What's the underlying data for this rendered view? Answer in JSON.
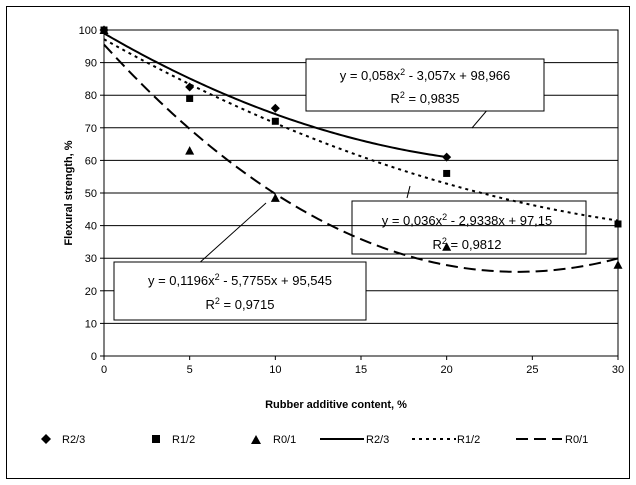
{
  "chart_data": {
    "type": "scatter",
    "xlabel": "Rubber additive content, %",
    "ylabel": "Flexural strength, %",
    "xlim": [
      0,
      30
    ],
    "ylim": [
      0,
      100
    ],
    "x_ticks": [
      "0",
      "5",
      "10",
      "15",
      "20",
      "25",
      "30"
    ],
    "y_ticks": [
      "0",
      "10",
      "20",
      "30",
      "40",
      "50",
      "60",
      "70",
      "80",
      "90",
      "100"
    ],
    "grid": "horizontal",
    "legend_position": "bottom",
    "series": [
      {
        "name": "R2/3",
        "marker": "diamond",
        "x": [
          0,
          5,
          10,
          20
        ],
        "y": [
          100,
          82.5,
          76,
          61
        ]
      },
      {
        "name": "R1/2",
        "marker": "square",
        "x": [
          0,
          5,
          10,
          20,
          30
        ],
        "y": [
          100,
          79,
          72,
          56,
          40.5
        ]
      },
      {
        "name": "R0/1",
        "marker": "triangle",
        "x": [
          0,
          5,
          10,
          20,
          30
        ],
        "y": [
          100,
          63,
          48.5,
          33.5,
          28
        ]
      }
    ],
    "trendlines": [
      {
        "name": "R2/3",
        "style": "solid",
        "a": 0.058,
        "b": -3.057,
        "c": 98.966,
        "x_range": [
          0,
          20
        ],
        "equation": "y = 0,058x",
        "equation_tail": " - 3,057x + 98,966",
        "r2_label": "R",
        "r2_value": " = 0,9835"
      },
      {
        "name": "R1/2",
        "style": "dotted",
        "a": 0.036,
        "b": -2.9338,
        "c": 97.15,
        "x_range": [
          0,
          30
        ],
        "equation": "y = 0,036x",
        "equation_tail": " - 2,9338x + 97,15",
        "r2_label": "R",
        "r2_value": " = 0,9812"
      },
      {
        "name": "R0/1",
        "style": "dashed",
        "a": 0.1196,
        "b": -5.7755,
        "c": 95.545,
        "x_range": [
          0,
          30
        ],
        "equation": "y = 0,1196x",
        "equation_tail": " - 5,7755x + 95,545",
        "r2_label": "R",
        "r2_value": " = 0,9715"
      }
    ],
    "legend": [
      "R2/3",
      "R1/2",
      "R0/1",
      "R2/3",
      "R1/2",
      "R0/1"
    ],
    "superscript": "2"
  }
}
